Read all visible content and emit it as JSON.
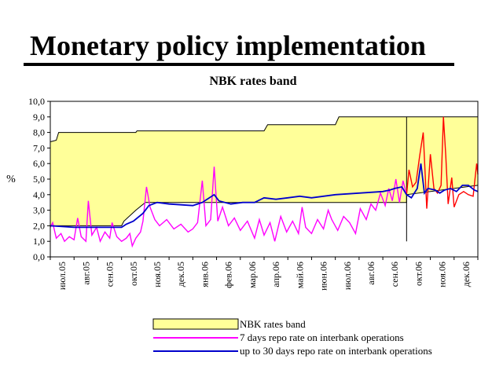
{
  "slide": {
    "title": "Monetary policy implementation"
  },
  "chart_data": {
    "type": "line",
    "title": "NBK rates band",
    "ylabel": "%",
    "ylim": [
      0,
      10
    ],
    "yticks": [
      "0,0",
      "1,0",
      "2,0",
      "3,0",
      "4,0",
      "5,0",
      "6,0",
      "7,0",
      "8,0",
      "9,0",
      "10,0"
    ],
    "xlim": [
      0,
      18
    ],
    "categories": [
      "июл.05",
      "авг.05",
      "сен.05",
      "окт.05",
      "ноя.05",
      "дек.05",
      "янв.06",
      "фев.06",
      "мар.06",
      "апр.06",
      "май.06",
      "июн.06",
      "июл.06",
      "авг.06",
      "сен.06",
      "окт.06",
      "ноя.06",
      "дек.06"
    ],
    "legend_position": "bottom",
    "grid": false,
    "colors": {
      "band_fill": "#ffff99",
      "band_edge": "#000000",
      "series_1": "#ff00ff",
      "series_1_after": "#ff0000",
      "series_2": "#0000cc"
    },
    "band": {
      "name": "NBK rates band",
      "upper": [
        [
          0,
          7.4
        ],
        [
          0.25,
          7.5
        ],
        [
          0.35,
          8.0
        ],
        [
          3.6,
          8.0
        ],
        [
          3.65,
          8.1
        ],
        [
          9.0,
          8.1
        ],
        [
          9.15,
          8.5
        ],
        [
          12.0,
          8.5
        ],
        [
          12.15,
          9.0
        ],
        [
          18,
          9.0
        ]
      ],
      "lower": [
        [
          0,
          2.0
        ],
        [
          3.0,
          2.0
        ],
        [
          3.1,
          2.3
        ],
        [
          3.6,
          3.0
        ],
        [
          4.0,
          3.5
        ],
        [
          15.0,
          3.5
        ],
        [
          15.0,
          4.0
        ],
        [
          18,
          4.6
        ]
      ]
    },
    "series": [
      {
        "name": "7 days repo rate on interbank operations",
        "values": [
          [
            0,
            1.9
          ],
          [
            0.1,
            2.2
          ],
          [
            0.25,
            1.2
          ],
          [
            0.45,
            1.5
          ],
          [
            0.6,
            1.0
          ],
          [
            0.8,
            1.3
          ],
          [
            1.0,
            1.1
          ],
          [
            1.15,
            2.5
          ],
          [
            1.3,
            1.3
          ],
          [
            1.5,
            1.0
          ],
          [
            1.6,
            3.6
          ],
          [
            1.75,
            1.4
          ],
          [
            1.95,
            1.9
          ],
          [
            2.1,
            1.0
          ],
          [
            2.3,
            1.6
          ],
          [
            2.5,
            1.2
          ],
          [
            2.6,
            2.2
          ],
          [
            2.8,
            1.3
          ],
          [
            3.0,
            1.0
          ],
          [
            3.2,
            1.2
          ],
          [
            3.35,
            1.5
          ],
          [
            3.45,
            0.7
          ],
          [
            3.6,
            1.2
          ],
          [
            3.8,
            1.6
          ],
          [
            3.9,
            2.3
          ],
          [
            4.05,
            4.5
          ],
          [
            4.2,
            3.2
          ],
          [
            4.4,
            2.4
          ],
          [
            4.6,
            2.0
          ],
          [
            4.9,
            2.4
          ],
          [
            5.2,
            1.8
          ],
          [
            5.5,
            2.1
          ],
          [
            5.8,
            1.6
          ],
          [
            6.0,
            1.8
          ],
          [
            6.2,
            2.2
          ],
          [
            6.4,
            4.9
          ],
          [
            6.55,
            2.0
          ],
          [
            6.75,
            2.4
          ],
          [
            6.9,
            5.8
          ],
          [
            7.05,
            2.3
          ],
          [
            7.25,
            3.2
          ],
          [
            7.5,
            2.0
          ],
          [
            7.75,
            2.5
          ],
          [
            8.0,
            1.7
          ],
          [
            8.3,
            2.3
          ],
          [
            8.6,
            1.2
          ],
          [
            8.8,
            2.4
          ],
          [
            9.0,
            1.4
          ],
          [
            9.25,
            2.2
          ],
          [
            9.45,
            1.0
          ],
          [
            9.7,
            2.6
          ],
          [
            9.95,
            1.6
          ],
          [
            10.2,
            2.3
          ],
          [
            10.45,
            1.5
          ],
          [
            10.6,
            3.2
          ],
          [
            10.75,
            1.9
          ],
          [
            11.0,
            1.5
          ],
          [
            11.25,
            2.4
          ],
          [
            11.5,
            1.8
          ],
          [
            11.7,
            3.0
          ],
          [
            11.85,
            2.4
          ],
          [
            12.1,
            1.7
          ],
          [
            12.35,
            2.6
          ],
          [
            12.6,
            2.2
          ],
          [
            12.85,
            1.5
          ],
          [
            13.05,
            3.1
          ],
          [
            13.3,
            2.4
          ],
          [
            13.5,
            3.4
          ],
          [
            13.7,
            3.0
          ],
          [
            13.9,
            4.1
          ],
          [
            14.1,
            3.3
          ],
          [
            14.25,
            4.4
          ],
          [
            14.4,
            3.6
          ],
          [
            14.55,
            5.0
          ],
          [
            14.7,
            3.5
          ],
          [
            14.85,
            4.9
          ],
          [
            15.0,
            4.0
          ]
        ]
      },
      {
        "name": "up to 30 days repo rate on interbank operations",
        "values": [
          [
            0,
            2.0
          ],
          [
            1.0,
            1.9
          ],
          [
            2.0,
            1.9
          ],
          [
            3.0,
            1.9
          ],
          [
            3.2,
            2.1
          ],
          [
            3.5,
            2.3
          ],
          [
            3.9,
            2.8
          ],
          [
            4.15,
            3.3
          ],
          [
            4.5,
            3.5
          ],
          [
            5.0,
            3.4
          ],
          [
            5.5,
            3.35
          ],
          [
            6.0,
            3.3
          ],
          [
            6.4,
            3.5
          ],
          [
            6.9,
            4.0
          ],
          [
            7.1,
            3.6
          ],
          [
            7.6,
            3.4
          ],
          [
            8.1,
            3.5
          ],
          [
            8.6,
            3.5
          ],
          [
            9.0,
            3.8
          ],
          [
            9.5,
            3.7
          ],
          [
            10.0,
            3.8
          ],
          [
            10.5,
            3.9
          ],
          [
            11.0,
            3.8
          ],
          [
            11.5,
            3.9
          ],
          [
            12.0,
            4.0
          ],
          [
            12.5,
            4.05
          ],
          [
            13.0,
            4.1
          ],
          [
            13.5,
            4.15
          ],
          [
            14.0,
            4.2
          ],
          [
            14.3,
            4.3
          ],
          [
            14.5,
            4.4
          ],
          [
            14.8,
            4.5
          ],
          [
            15.0,
            4.0
          ],
          [
            15.2,
            3.8
          ],
          [
            15.45,
            4.4
          ],
          [
            15.6,
            6.0
          ],
          [
            15.75,
            4.1
          ],
          [
            15.9,
            4.4
          ],
          [
            16.2,
            4.3
          ],
          [
            16.4,
            4.1
          ],
          [
            16.6,
            4.3
          ],
          [
            16.85,
            4.4
          ],
          [
            17.1,
            4.2
          ],
          [
            17.35,
            4.6
          ],
          [
            17.6,
            4.6
          ],
          [
            17.85,
            4.3
          ],
          [
            18,
            4.2
          ]
        ]
      },
      {
        "name": "",
        "values": [
          [
            15.0,
            4.0
          ],
          [
            15.1,
            5.6
          ],
          [
            15.25,
            4.5
          ],
          [
            15.4,
            4.8
          ],
          [
            15.55,
            6.5
          ],
          [
            15.7,
            8.0
          ],
          [
            15.85,
            3.1
          ],
          [
            16.0,
            6.6
          ],
          [
            16.15,
            4.4
          ],
          [
            16.3,
            4.1
          ],
          [
            16.45,
            4.6
          ],
          [
            16.55,
            9.0
          ],
          [
            16.65,
            6.5
          ],
          [
            16.75,
            3.4
          ],
          [
            16.9,
            5.1
          ],
          [
            17.0,
            3.2
          ],
          [
            17.2,
            4.0
          ],
          [
            17.4,
            4.2
          ],
          [
            17.6,
            4.0
          ],
          [
            17.8,
            3.9
          ],
          [
            17.95,
            6.0
          ],
          [
            18,
            5.3
          ]
        ]
      }
    ]
  }
}
